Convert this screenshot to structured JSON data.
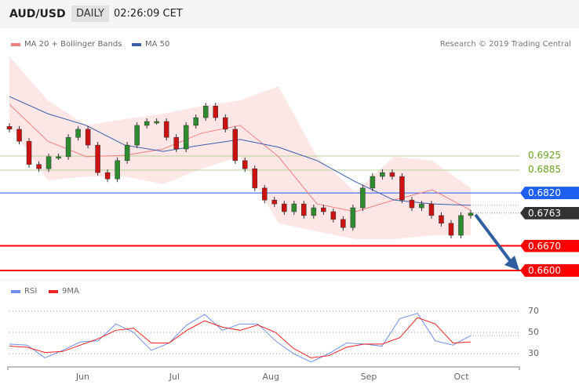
{
  "header": {
    "symbol": "AUD/USD",
    "timeframe": "DAILY",
    "time": "02:26:09 CET"
  },
  "legend": {
    "ma20": "MA 20 + Bollinger Bands",
    "ma50": "MA 50",
    "rsi": "RSI",
    "rsi_ma": "9MA"
  },
  "credit": "Research © 2019 Trading Central",
  "colors": {
    "up": "#2e8b2e",
    "down": "#cc1111",
    "ma20": "#f08080",
    "band": "#fde0e0",
    "ma50": "#3a5fa8",
    "rsi": "#6f8fe8",
    "rsi_ma": "#ee2222"
  },
  "levels": [
    {
      "value": "0.6925",
      "kind": "resistance-minor",
      "color": "#6aa321"
    },
    {
      "value": "0.6885",
      "kind": "resistance-minor",
      "color": "#6aa321"
    },
    {
      "value": "0.6820",
      "kind": "resistance",
      "color": "#1e5ef0"
    },
    {
      "value": "0.6763",
      "kind": "last",
      "color": "#333333"
    },
    {
      "value": "0.6670",
      "kind": "support",
      "color": "#ff0000"
    },
    {
      "value": "0.6600",
      "kind": "target",
      "color": "#ff0000"
    }
  ],
  "chart_data": {
    "type": "candlestick",
    "months": [
      "Jun",
      "Jul",
      "Aug",
      "Sep",
      "Oct"
    ],
    "month_index": [
      7.5,
      17,
      26.5,
      36.5,
      46
    ],
    "closes": [
      0.7001,
      0.6967,
      0.6901,
      0.6889,
      0.6923,
      0.6923,
      0.6978,
      0.7001,
      0.6956,
      0.6878,
      0.686,
      0.6912,
      0.6956,
      0.7012,
      0.7023,
      0.7023,
      0.6978,
      0.6945,
      0.7012,
      0.7034,
      0.7067,
      0.7034,
      0.7001,
      0.6912,
      0.6889,
      0.6834,
      0.68,
      0.6789,
      0.6767,
      0.6789,
      0.6756,
      0.6778,
      0.6767,
      0.6745,
      0.6722,
      0.6778,
      0.6834,
      0.6867,
      0.6878,
      0.6867,
      0.68,
      0.6778,
      0.6789,
      0.6756,
      0.6734,
      0.67,
      0.6756,
      0.6763
    ],
    "ma50": [
      0.7094,
      0.7045,
      0.7012,
      0.6956,
      0.6938,
      0.6956,
      0.6972,
      0.695,
      0.6912,
      0.6852,
      0.68,
      0.6789,
      0.6785
    ],
    "ma20": [
      0.7072,
      0.6967,
      0.6923,
      0.6927,
      0.6945,
      0.699,
      0.7012,
      0.6923,
      0.6789,
      0.6767,
      0.68,
      0.6829,
      0.6771
    ],
    "bb_upper": [
      0.7208,
      0.7083,
      0.7012,
      0.703,
      0.7045,
      0.7067,
      0.7083,
      0.7123,
      0.6923,
      0.6823,
      0.6923,
      0.6912,
      0.6834
    ],
    "bb_lower": [
      0.7012,
      0.6856,
      0.6867,
      0.6867,
      0.6845,
      0.6889,
      0.6923,
      0.6734,
      0.6711,
      0.6689,
      0.6689,
      0.67,
      0.67
    ],
    "forecast": {
      "from": 0.6763,
      "to": 0.66
    },
    "rsi": {
      "ticks": [
        "70",
        "50",
        "30"
      ],
      "values": [
        39,
        38,
        26,
        33,
        41,
        42,
        58,
        50,
        33,
        40,
        57,
        67,
        52,
        58,
        58,
        42,
        30,
        22,
        30,
        40,
        39,
        37,
        63,
        68,
        42,
        38,
        47
      ],
      "ma9": [
        37,
        36,
        31,
        32,
        38,
        44,
        52,
        54,
        40,
        40,
        52,
        61,
        55,
        52,
        57,
        50,
        35,
        26,
        28,
        36,
        39,
        39,
        45,
        64,
        58,
        40,
        41
      ]
    }
  }
}
